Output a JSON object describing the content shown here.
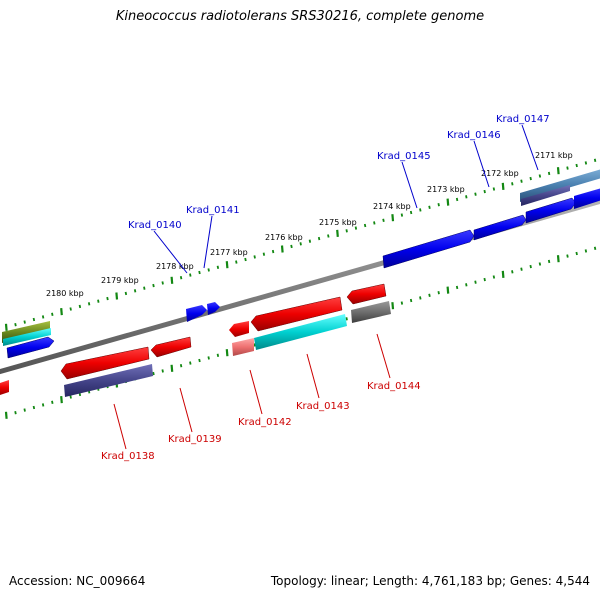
{
  "title": "Kineococcus radiotolerans SRS30216, complete genome",
  "footer": {
    "accession": "Accession: NC_009664",
    "summary": "Topology: linear; Length: 4,761,183 bp; Genes: 4,544"
  },
  "colors": {
    "forward_label": "#0000cc",
    "reverse_label": "#cc0000",
    "forward_gene": "#0000ee",
    "reverse_gene": "#ee0000",
    "backbone": "#808080",
    "tick": "#138813"
  },
  "kbp_labels": [
    "2171 kbp",
    "2172 kbp",
    "2173 kbp",
    "2174 kbp",
    "2175 kbp",
    "2176 kbp",
    "2177 kbp",
    "2178 kbp",
    "2179 kbp",
    "2180 kbp"
  ],
  "forward_genes": [
    "Krad_0140",
    "Krad_0141",
    "Krad_0145",
    "Krad_0146",
    "Krad_0147"
  ],
  "reverse_genes": [
    "Krad_0138",
    "Krad_0139",
    "Krad_0142",
    "Krad_0143",
    "Krad_0144"
  ]
}
